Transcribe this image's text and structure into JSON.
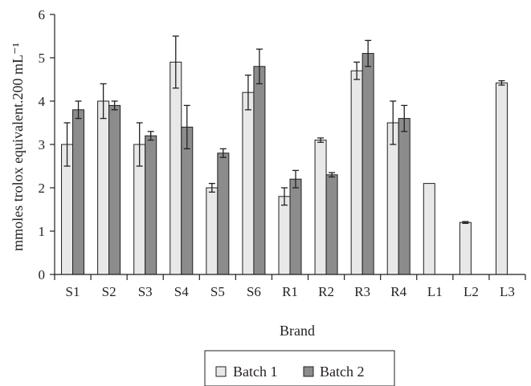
{
  "chart_data": {
    "type": "bar",
    "categories": [
      "S1",
      "S2",
      "S3",
      "S4",
      "S5",
      "S6",
      "R1",
      "R2",
      "R3",
      "R4",
      "L1",
      "L2",
      "L3"
    ],
    "series": [
      {
        "name": "Batch 1",
        "color": "#e8e8e8",
        "values": [
          3.0,
          4.0,
          3.0,
          4.9,
          2.0,
          4.2,
          1.8,
          3.1,
          4.7,
          3.5,
          2.1,
          1.2,
          4.42
        ],
        "errors": [
          0.5,
          0.4,
          0.5,
          0.6,
          0.1,
          0.4,
          0.2,
          0.05,
          0.2,
          0.5,
          0,
          0.02,
          0.05
        ]
      },
      {
        "name": "Batch 2",
        "color": "#8c8c8c",
        "values": [
          3.8,
          3.9,
          3.2,
          3.4,
          2.8,
          4.8,
          2.2,
          2.3,
          5.1,
          3.6,
          null,
          null,
          null
        ],
        "errors": [
          0.2,
          0.1,
          0.1,
          0.5,
          0.1,
          0.4,
          0.2,
          0.05,
          0.3,
          0.3,
          null,
          null,
          null
        ]
      }
    ],
    "xlabel": "Brand",
    "ylabel": "mmoles trolox equivalent.200 mL⁻¹",
    "ylim": [
      0,
      6
    ],
    "yticks": [
      0,
      1,
      2,
      3,
      4,
      5,
      6
    ],
    "grid": false,
    "legend_position": "bottom-center"
  }
}
